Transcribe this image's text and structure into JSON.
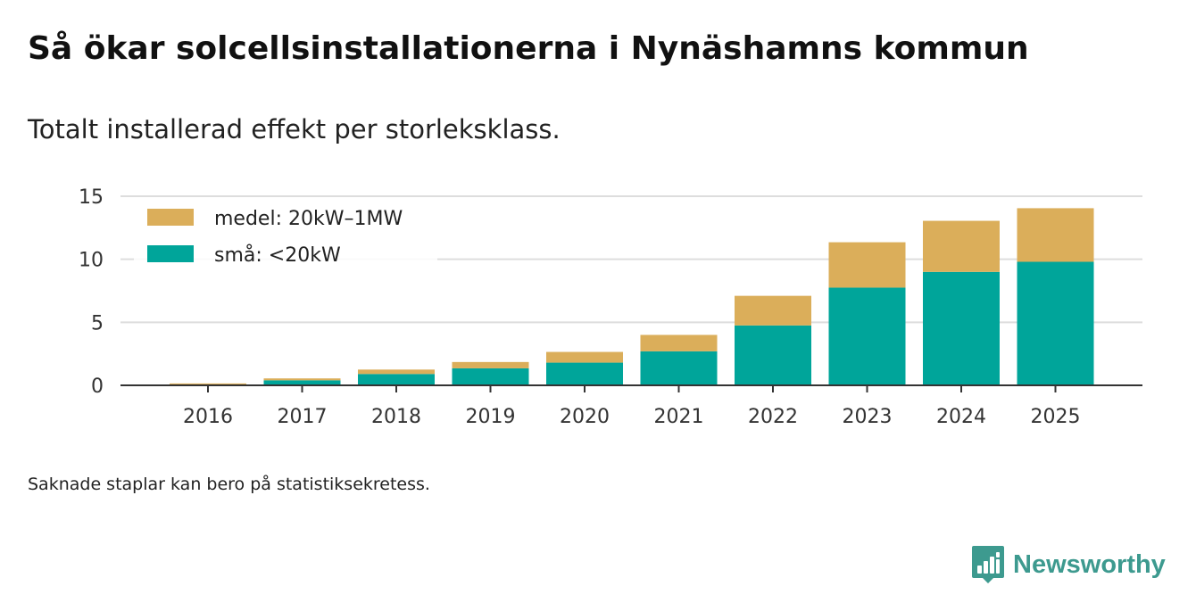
{
  "title": "Så ökar solcellsinstallationerna i Nynäshamns kommun",
  "subtitle": "Totalt installerad effekt per storleksklass.",
  "footnote": "Saknade staplar kan bero på statistiksekretess.",
  "brand": {
    "name": "Newsworthy",
    "icon": "newsworthy-logo-icon",
    "color": "#3d9a8f"
  },
  "chart_data": {
    "type": "bar",
    "stacked": true,
    "title": "Så ökar solcellsinstallationerna i Nynäshamns kommun",
    "subtitle": "Totalt installerad effekt per storleksklass.",
    "xlabel": "",
    "ylabel": "",
    "ylim": [
      0,
      15
    ],
    "yticks": [
      0,
      5,
      10,
      15
    ],
    "grid": true,
    "legend_position": "top-left",
    "categories": [
      "2016",
      "2017",
      "2018",
      "2019",
      "2020",
      "2021",
      "2022",
      "2023",
      "2024",
      "2025"
    ],
    "series": [
      {
        "name": "små: <20kW",
        "color": "#00a59a",
        "values": [
          0.05,
          0.4,
          0.9,
          1.35,
          1.8,
          2.7,
          4.75,
          7.75,
          9.0,
          9.8
        ]
      },
      {
        "name": "medel: 20kW–1MW",
        "color": "#dbae5a",
        "values": [
          0.1,
          0.15,
          0.35,
          0.5,
          0.85,
          1.3,
          2.35,
          3.6,
          4.05,
          4.25
        ]
      }
    ]
  }
}
